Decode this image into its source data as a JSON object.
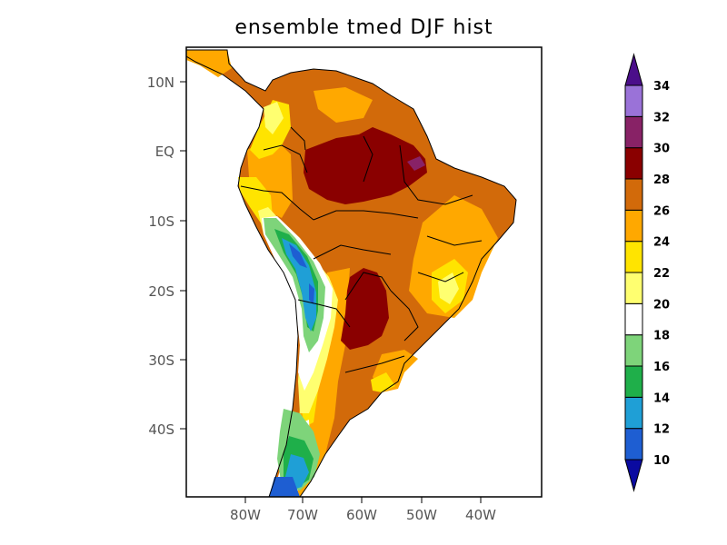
{
  "title": "ensemble tmed DJF hist",
  "axes": {
    "lat_labels": [
      "10N",
      "EQ",
      "10S",
      "20S",
      "30S",
      "40S"
    ],
    "lon_labels": [
      "80W",
      "70W",
      "60W",
      "50W",
      "40W"
    ]
  },
  "colorbar": {
    "levels": [
      "10",
      "12",
      "14",
      "16",
      "18",
      "20",
      "22",
      "24",
      "26",
      "28",
      "30",
      "32",
      "34"
    ],
    "colors": [
      "#0a0aa0",
      "#1e5ed2",
      "#1f9fd6",
      "#1faf4a",
      "#7ed47a",
      "#ffffff",
      "#ffff70",
      "#ffe400",
      "#ffa800",
      "#d26a0a",
      "#8a0000",
      "#882266",
      "#9a72d8",
      "#4b0e8a"
    ]
  }
}
